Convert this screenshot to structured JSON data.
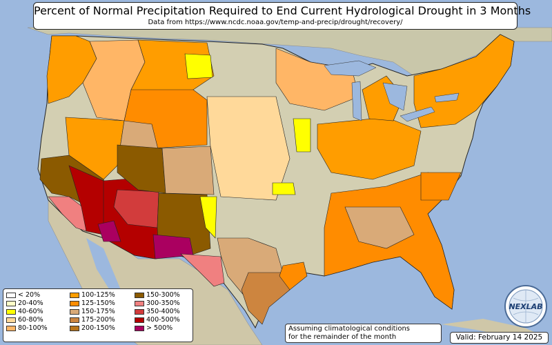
{
  "title": "Percent of Normal Precipitation Required to End Current Hydrological Drought in 3 Months",
  "subtitle": "Data from https://www.ncdc.noaa.gov/temp-and-precip/drought/recovery/",
  "note_lines": [
    "Assuming climatological conditions",
    "for the remainder of the month"
  ],
  "valid_label": "Valid: February 14 2025",
  "logo_text": "NEXLAB",
  "colors": {
    "ocean": "#9cb8de",
    "land": "#cfc9ae",
    "lt20": "#ffffff",
    "p20_40": "#ffffc8",
    "p40_60": "#ffff00",
    "p60_80": "#ffd99a",
    "p80_100": "#ffb666",
    "p100_125": "#ff9d00",
    "p125_150": "#ff8c00",
    "p150_175": "#d9aa78",
    "p175_200": "#cd853f",
    "p200_150": "#b8741a",
    "p150_300": "#8b5a00",
    "p300_350": "#f08080",
    "p350_400": "#d23c3c",
    "p400_500": "#b40000",
    "gt500": "#aa0060"
  },
  "legend": [
    [
      {
        "label": "< 20%",
        "color": "#ffffff"
      },
      {
        "label": "20-40%",
        "color": "#ffffc8"
      },
      {
        "label": "40-60%",
        "color": "#ffff00"
      },
      {
        "label": "60-80%",
        "color": "#ffd99a"
      },
      {
        "label": "80-100%",
        "color": "#ffb666"
      }
    ],
    [
      {
        "label": "100-125%",
        "color": "#ff9d00"
      },
      {
        "label": "125-150%",
        "color": "#ff8c00"
      },
      {
        "label": "150-175%",
        "color": "#d9aa78"
      },
      {
        "label": "175-200%",
        "color": "#cd853f"
      },
      {
        "label": "200-150%",
        "color": "#b8741a"
      }
    ],
    [
      {
        "label": "150-300%",
        "color": "#8b5a00"
      },
      {
        "label": "300-350%",
        "color": "#f08080"
      },
      {
        "label": "350-400%",
        "color": "#d23c3c"
      },
      {
        "label": "400-500%",
        "color": "#b40000"
      },
      {
        "label": "> 500%",
        "color": "#aa0060"
      }
    ]
  ]
}
